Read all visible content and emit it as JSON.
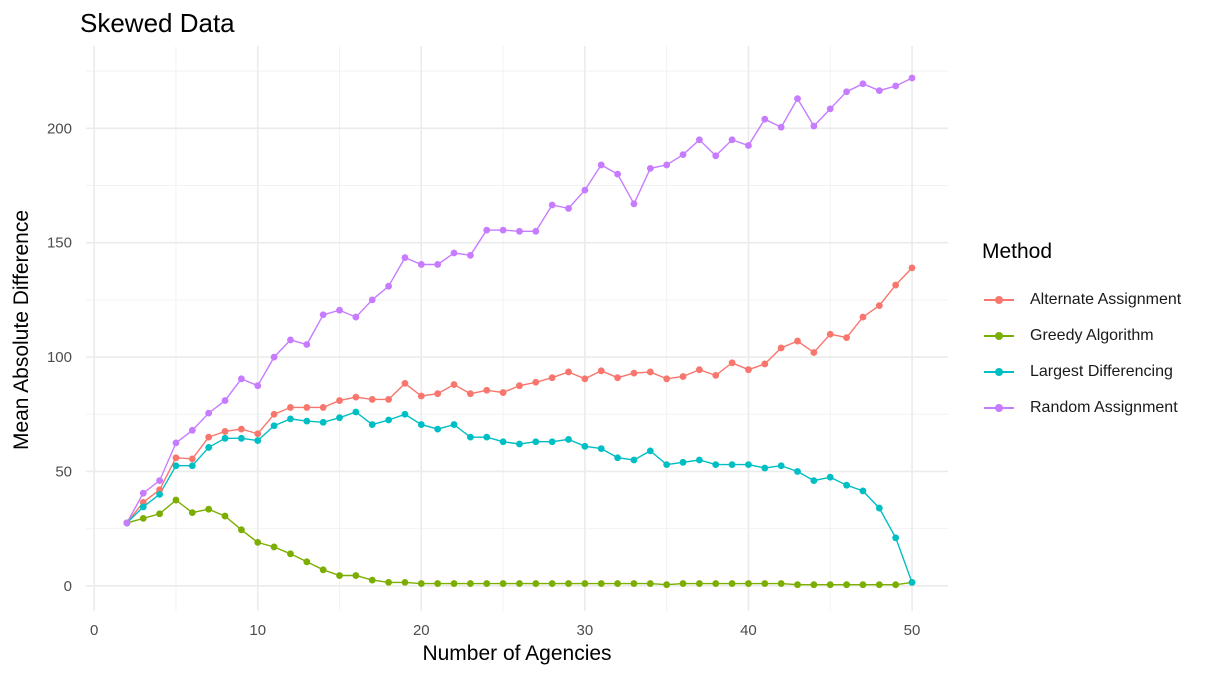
{
  "chart_data": {
    "type": "line",
    "title": "Skewed Data",
    "xlabel": "Number of Agencies",
    "ylabel": "Mean Absolute Difference",
    "xlim": [
      -0.5,
      52.2
    ],
    "ylim": [
      -11,
      236
    ],
    "xticks": [
      0,
      10,
      20,
      30,
      40,
      50
    ],
    "yticks": [
      0,
      50,
      100,
      150,
      200
    ],
    "grid": true,
    "legend_position": "right",
    "legend_title": "Method",
    "x": [
      2,
      3,
      4,
      5,
      6,
      7,
      8,
      9,
      10,
      11,
      12,
      13,
      14,
      15,
      16,
      17,
      18,
      19,
      20,
      21,
      22,
      23,
      24,
      25,
      26,
      27,
      28,
      29,
      30,
      31,
      32,
      33,
      34,
      35,
      36,
      37,
      38,
      39,
      40,
      41,
      42,
      43,
      44,
      45,
      46,
      47,
      48,
      49,
      50
    ],
    "series": [
      {
        "name": "Alternate Assignment",
        "color": "#F8766D",
        "values": [
          27.5,
          36.5,
          42,
          56,
          55.5,
          65,
          67.5,
          68.5,
          66.5,
          75,
          78,
          78,
          78,
          81,
          82.5,
          81.5,
          81.5,
          88.5,
          83,
          84,
          88,
          84,
          85.5,
          84.5,
          87.5,
          89,
          91,
          93.5,
          90.5,
          94,
          91,
          93,
          93.5,
          90.5,
          91.5,
          94.5,
          92,
          97.5,
          94.5,
          97,
          104,
          107,
          102,
          110,
          108.5,
          117.5,
          122.5,
          131.5,
          139
        ]
      },
      {
        "name": "Greedy Algorithm",
        "color": "#7CAE00",
        "values": [
          27.5,
          29.5,
          31.5,
          37.5,
          32,
          33.5,
          30.5,
          24.5,
          19,
          17,
          14,
          10.5,
          7,
          4.5,
          4.5,
          2.5,
          1.5,
          1.5,
          1,
          1,
          1,
          1,
          1,
          1,
          1,
          1,
          1,
          1,
          1,
          1,
          1,
          1,
          1,
          0.5,
          1,
          1,
          1,
          1,
          1,
          1,
          1,
          0.5,
          0.5,
          0.5,
          0.5,
          0.5,
          0.5,
          0.5,
          1.5
        ]
      },
      {
        "name": "Largest Differencing",
        "color": "#00BFC4",
        "values": [
          27.5,
          34.5,
          40,
          52.5,
          52.5,
          60.5,
          64.5,
          64.5,
          63.5,
          70,
          73,
          72,
          71.5,
          73.5,
          76,
          70.5,
          72.5,
          75,
          70.5,
          68.5,
          70.5,
          65,
          65,
          63,
          62,
          63,
          63,
          64,
          61,
          60,
          56,
          55,
          59,
          53,
          54,
          55,
          53,
          53,
          53,
          51.5,
          52.5,
          50,
          46,
          47.5,
          44,
          41.5,
          34,
          21,
          1.5
        ]
      },
      {
        "name": "Random Assignment",
        "color": "#C77CFF",
        "values": [
          27.5,
          40.5,
          46,
          62.5,
          68,
          75.5,
          81,
          90.5,
          87.5,
          100,
          107.5,
          105.5,
          118.5,
          120.5,
          117.5,
          125,
          131,
          143.5,
          140.5,
          140.5,
          145.5,
          144.5,
          155.5,
          155.5,
          155,
          155,
          166.5,
          165,
          173,
          184,
          180,
          167,
          182.5,
          184,
          188.5,
          195,
          188,
          195,
          192.5,
          204,
          200.5,
          213,
          201,
          208.5,
          216,
          219.5,
          216.5,
          218.5,
          222
        ]
      }
    ]
  }
}
